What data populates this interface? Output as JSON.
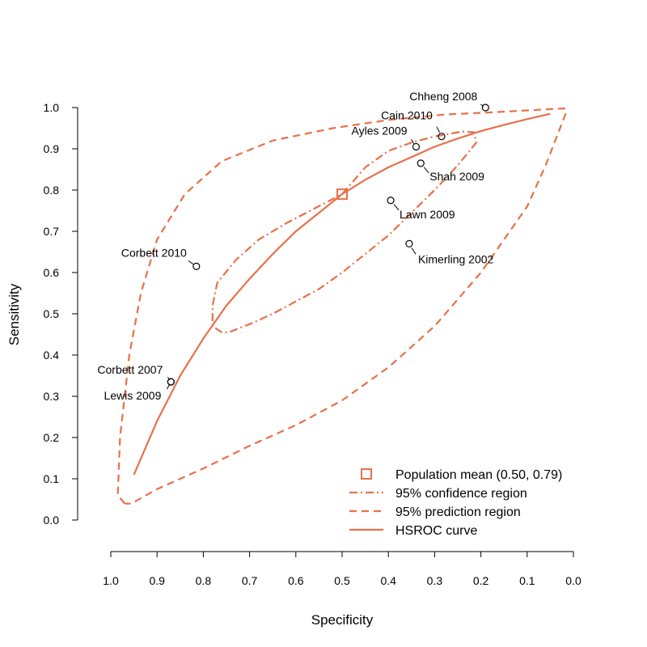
{
  "chart_data": {
    "type": "scatter",
    "title": "",
    "xlabel": "Specificity",
    "ylabel": "Sensitivity",
    "xlim": [
      1.0,
      0.0
    ],
    "ylim": [
      0.0,
      1.0
    ],
    "x_reversed": true,
    "grid": false,
    "legend_placement": "bottom-right",
    "accent_color": "#E8704A",
    "point_color": "#000000",
    "x_ticks": [
      "1.0",
      "0.9",
      "0.8",
      "0.7",
      "0.6",
      "0.5",
      "0.4",
      "0.3",
      "0.2",
      "0.1",
      "0.0"
    ],
    "y_ticks": [
      "0.0",
      "0.1",
      "0.2",
      "0.3",
      "0.4",
      "0.5",
      "0.6",
      "0.7",
      "0.8",
      "0.9",
      "1.0"
    ],
    "studies": [
      {
        "label": "Chheng 2008",
        "specificity": 0.19,
        "sensitivity": 1.0
      },
      {
        "label": "Cain 2010",
        "specificity": 0.285,
        "sensitivity": 0.93
      },
      {
        "label": "Ayles 2009",
        "specificity": 0.34,
        "sensitivity": 0.905
      },
      {
        "label": "Shah 2009",
        "specificity": 0.33,
        "sensitivity": 0.865
      },
      {
        "label": "Lawn 2009",
        "specificity": 0.395,
        "sensitivity": 0.775
      },
      {
        "label": "Kimerling 2002",
        "specificity": 0.355,
        "sensitivity": 0.67
      },
      {
        "label": "Corbett 2010",
        "specificity": 0.815,
        "sensitivity": 0.615
      },
      {
        "label": "Corbett 2007",
        "specificity": 0.87,
        "sensitivity": 0.335
      },
      {
        "label": "Lewis 2009",
        "specificity": 0.87,
        "sensitivity": 0.335
      }
    ],
    "population_mean": {
      "specificity": 0.5,
      "sensitivity": 0.79
    },
    "hsroc_curve": [
      [
        0.95,
        0.11
      ],
      [
        0.9,
        0.24
      ],
      [
        0.85,
        0.35
      ],
      [
        0.8,
        0.44
      ],
      [
        0.75,
        0.52
      ],
      [
        0.7,
        0.585
      ],
      [
        0.65,
        0.645
      ],
      [
        0.6,
        0.7
      ],
      [
        0.55,
        0.745
      ],
      [
        0.5,
        0.79
      ],
      [
        0.45,
        0.825
      ],
      [
        0.4,
        0.855
      ],
      [
        0.35,
        0.88
      ],
      [
        0.3,
        0.905
      ],
      [
        0.25,
        0.925
      ],
      [
        0.2,
        0.943
      ],
      [
        0.15,
        0.958
      ],
      [
        0.1,
        0.972
      ],
      [
        0.05,
        0.985
      ]
    ],
    "confidence_region": [
      [
        0.5,
        0.79
      ],
      [
        0.45,
        0.855
      ],
      [
        0.4,
        0.895
      ],
      [
        0.35,
        0.915
      ],
      [
        0.3,
        0.93
      ],
      [
        0.24,
        0.942
      ],
      [
        0.215,
        0.94
      ],
      [
        0.21,
        0.915
      ],
      [
        0.25,
        0.86
      ],
      [
        0.3,
        0.8
      ],
      [
        0.35,
        0.745
      ],
      [
        0.4,
        0.69
      ],
      [
        0.45,
        0.645
      ],
      [
        0.5,
        0.6
      ],
      [
        0.55,
        0.56
      ],
      [
        0.6,
        0.53
      ],
      [
        0.65,
        0.5
      ],
      [
        0.7,
        0.475
      ],
      [
        0.745,
        0.455
      ],
      [
        0.76,
        0.455
      ],
      [
        0.78,
        0.47
      ],
      [
        0.78,
        0.52
      ],
      [
        0.77,
        0.575
      ],
      [
        0.73,
        0.63
      ],
      [
        0.68,
        0.68
      ],
      [
        0.62,
        0.72
      ],
      [
        0.56,
        0.755
      ],
      [
        0.5,
        0.79
      ]
    ],
    "prediction_region": [
      [
        0.97,
        0.04
      ],
      [
        0.985,
        0.06
      ],
      [
        0.98,
        0.2
      ],
      [
        0.96,
        0.4
      ],
      [
        0.935,
        0.55
      ],
      [
        0.9,
        0.68
      ],
      [
        0.84,
        0.79
      ],
      [
        0.76,
        0.87
      ],
      [
        0.65,
        0.92
      ],
      [
        0.52,
        0.95
      ],
      [
        0.4,
        0.97
      ],
      [
        0.28,
        0.983
      ],
      [
        0.15,
        0.99
      ],
      [
        0.02,
        0.998
      ],
      [
        0.015,
        0.99
      ],
      [
        0.06,
        0.86
      ],
      [
        0.1,
        0.76
      ],
      [
        0.2,
        0.6
      ],
      [
        0.3,
        0.47
      ],
      [
        0.4,
        0.37
      ],
      [
        0.5,
        0.29
      ],
      [
        0.6,
        0.23
      ],
      [
        0.7,
        0.18
      ],
      [
        0.8,
        0.125
      ],
      [
        0.9,
        0.075
      ],
      [
        0.955,
        0.04
      ],
      [
        0.97,
        0.04
      ]
    ],
    "legend": [
      {
        "key": "mean",
        "label": "Population mean (0.50, 0.79)"
      },
      {
        "key": "confidence",
        "label": "95% confidence region"
      },
      {
        "key": "prediction",
        "label": "95% prediction region"
      },
      {
        "key": "hsroc",
        "label": "HSROC curve"
      }
    ]
  }
}
